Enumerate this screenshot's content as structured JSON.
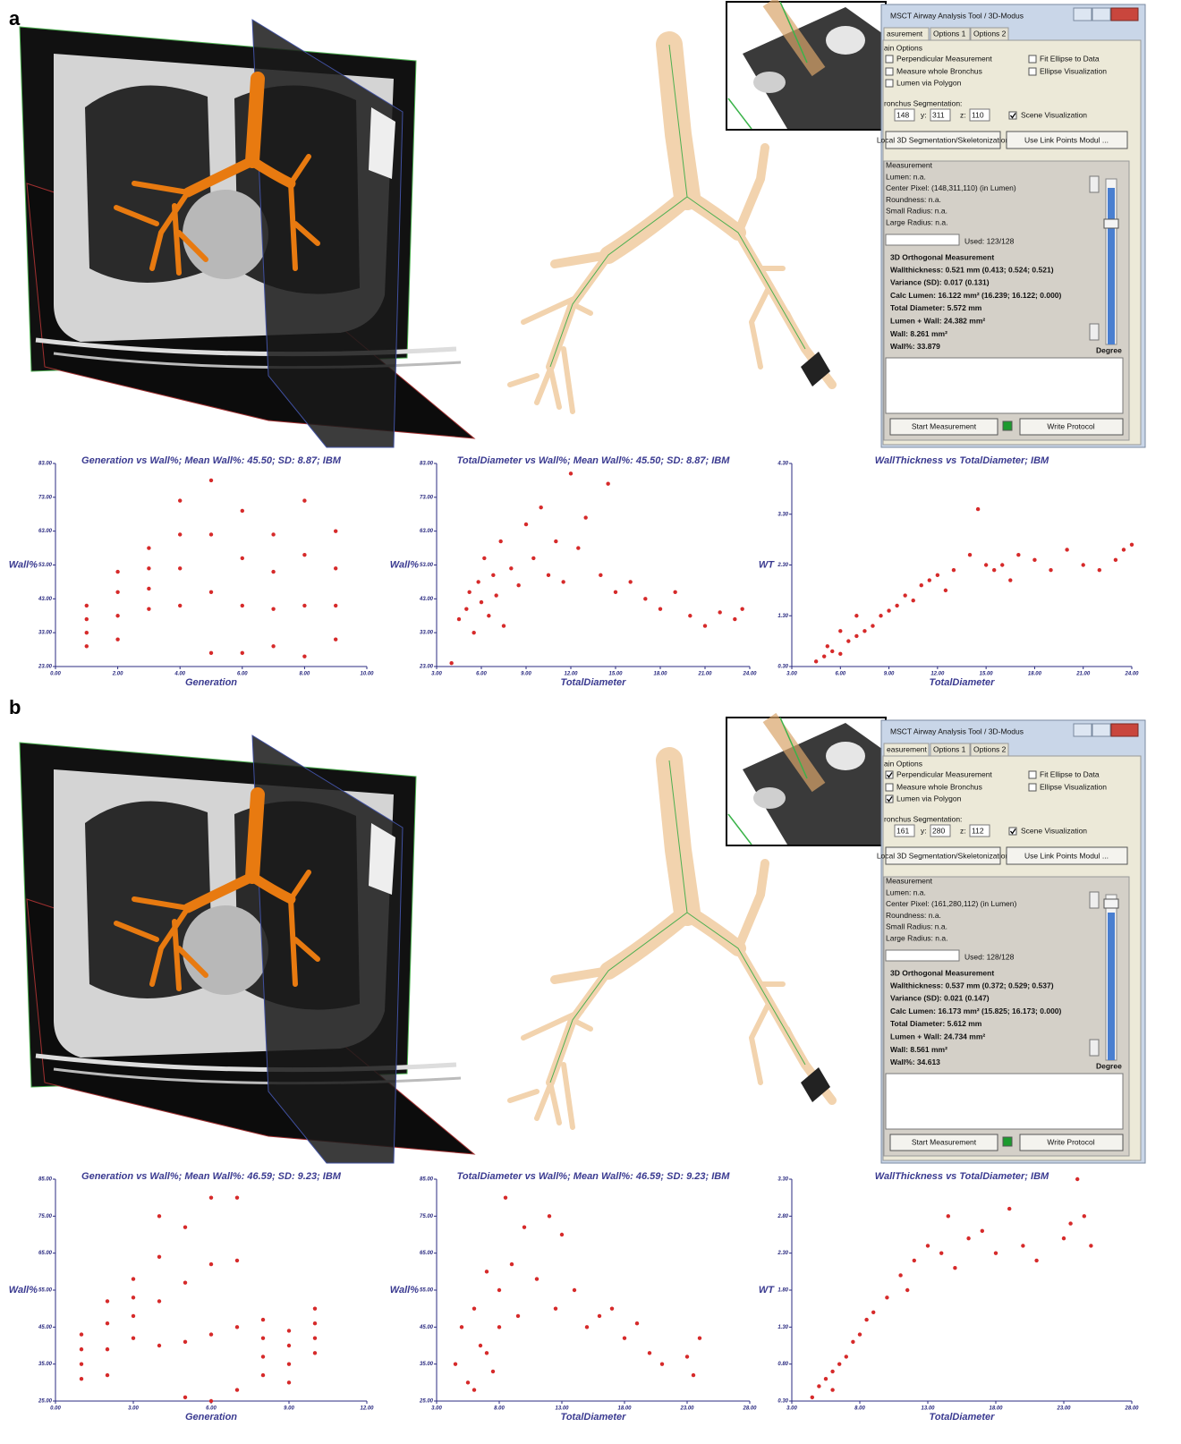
{
  "panels": [
    {
      "label": "a",
      "window": {
        "title": "MSCT Airway Analysis Tool / 3D-Modus",
        "tabs": [
          "asurement",
          "Options 1",
          "Options 2"
        ],
        "main_options_label": "ain Options",
        "options": [
          {
            "label": "Perpendicular Measurement",
            "checked": false
          },
          {
            "label": "Measure whole Bronchus",
            "checked": false
          },
          {
            "label": "Lumen via Polygon",
            "checked": false
          },
          {
            "label": "Fit Ellipse to Data",
            "checked": false
          },
          {
            "label": "Ellipse Visualization",
            "checked": false
          }
        ],
        "segmentation_label": "ronchus Segmentation:",
        "coords": {
          "x": 148,
          "y": 311,
          "z": 110
        },
        "coord_labels": [
          "y:",
          "z:"
        ],
        "scene_visualization": {
          "label": "Scene Visualization",
          "checked": true
        },
        "buttons": [
          "Local 3D Segmentation/Skeletonization",
          "Use Link Points Modul ..."
        ],
        "measurement_label": "Measurement",
        "info_lines": [
          "Lumen: n.a.",
          "Center Pixel: (148,311,110) (in Lumen)",
          "Roundness: n.a.",
          "Small Radius: n.a.",
          "Large Radius: n.a."
        ],
        "used": "Used: 123/128",
        "results_title": "3D Orthogonal Measurement",
        "results": [
          "Wallthickness: 0.521 mm (0.413; 0.524; 0.521)",
          "Variance (SD): 0.017 (0.131)",
          "Calc Lumen: 16.122 mm² (16.239; 16.122; 0.000)",
          "Total Diameter: 5.572 mm",
          "Lumen + Wall: 24.382 mm²",
          "Wall: 8.261 mm²",
          "Wall%: 33.879"
        ],
        "degree": "Degree",
        "bottom_buttons": [
          "Start Measurement",
          "Write Protocol"
        ]
      }
    },
    {
      "label": "b",
      "window": {
        "title": "MSCT Airway Analysis Tool / 3D-Modus",
        "tabs": [
          "easurement",
          "Options 1",
          "Options 2"
        ],
        "main_options_label": "ain Options",
        "options": [
          {
            "label": "Perpendicular Measurement",
            "checked": true
          },
          {
            "label": "Measure whole Bronchus",
            "checked": false
          },
          {
            "label": "Lumen via Polygon",
            "checked": true
          },
          {
            "label": "Fit Ellipse to Data",
            "checked": false
          },
          {
            "label": "Ellipse Visualization",
            "checked": false
          }
        ],
        "segmentation_label": "ronchus Segmentation:",
        "coords": {
          "x": 161,
          "y": 280,
          "z": 112
        },
        "coord_labels": [
          "y:",
          "z:"
        ],
        "scene_visualization": {
          "label": "Scene Visualization",
          "checked": true
        },
        "buttons": [
          "Local 3D Segmentation/Skeletonization",
          "Use Link Points Modul ..."
        ],
        "measurement_label": "Measurement",
        "info_lines": [
          "Lumen: n.a.",
          "Center Pixel: (161,280,112) (in Lumen)",
          "Roundness: n.a.",
          "Small Radius: n.a.",
          "Large Radius: n.a."
        ],
        "used": "Used: 128/128",
        "results_title": "3D Orthogonal Measurement",
        "results": [
          "Wallthickness: 0.537 mm (0.372; 0.529; 0.537)",
          "Variance (SD): 0.021 (0.147)",
          "Calc Lumen: 16.173 mm² (15.825; 16.173; 0.000)",
          "Total Diameter: 5.612 mm",
          "Lumen + Wall: 24.734 mm²",
          "Wall: 8.561 mm²",
          "Wall%: 34.613"
        ],
        "degree": "Degree",
        "bottom_buttons": [
          "Start Measurement",
          "Write Protocol"
        ]
      }
    }
  ],
  "chart_data": [
    {
      "type": "scatter",
      "title": "Generation vs Wall%; Mean Wall%: 45.50; SD: 8.87; IBM",
      "x_label": "Generation",
      "y_label": "Wall%",
      "color": "#d62a2a",
      "x": [
        1,
        1,
        1,
        1,
        2,
        2,
        2,
        2,
        3,
        3,
        3,
        3,
        4,
        4,
        4,
        4,
        5,
        5,
        5,
        5,
        6,
        6,
        6,
        6,
        7,
        7,
        7,
        7,
        8,
        8,
        8,
        8,
        9,
        9,
        9,
        9
      ],
      "y": [
        29,
        33,
        37,
        41,
        31,
        38,
        45,
        51,
        40,
        46,
        52,
        58,
        41,
        52,
        62,
        72,
        27,
        45,
        62,
        78,
        27,
        41,
        55,
        69,
        29,
        40,
        51,
        62,
        26,
        41,
        56,
        72,
        31,
        41,
        52,
        63
      ],
      "xlim": [
        0,
        10
      ],
      "ylim": [
        23,
        83
      ],
      "xticks": [
        {
          "value": 0,
          "label": "0.00"
        },
        {
          "value": 2,
          "label": "2.00"
        },
        {
          "value": 4,
          "label": "4.00"
        },
        {
          "value": 6,
          "label": "6.00"
        },
        {
          "value": 8,
          "label": "8.00"
        },
        {
          "value": 10,
          "label": "10.00"
        }
      ],
      "yticks": [
        {
          "value": 23,
          "label": "23.00"
        },
        {
          "value": 33,
          "label": "33.00"
        },
        {
          "value": 43,
          "label": "43.00"
        },
        {
          "value": 53,
          "label": "53.00"
        },
        {
          "value": 63,
          "label": "63.00"
        },
        {
          "value": 73,
          "label": "73.00"
        },
        {
          "value": 83,
          "label": "83.00"
        }
      ]
    },
    {
      "type": "scatter",
      "title": "TotalDiameter vs Wall%; Mean Wall%: 45.50; SD: 8.87; IBM",
      "x_label": "TotalDiameter",
      "y_label": "Wall%",
      "color": "#d62a2a",
      "x": [
        4.5,
        5,
        5.2,
        5.5,
        5.8,
        6,
        6.2,
        6.5,
        6.8,
        7,
        7.3,
        7.5,
        8,
        8.5,
        9,
        9.5,
        10,
        10.5,
        11,
        11.5,
        12,
        12.5,
        13,
        14,
        14.5,
        15,
        16,
        17,
        18,
        19,
        20,
        21,
        22,
        23,
        23.5,
        4
      ],
      "y": [
        37,
        40,
        45,
        33,
        48,
        42,
        55,
        38,
        50,
        44,
        60,
        35,
        52,
        47,
        65,
        55,
        70,
        50,
        60,
        48,
        80,
        58,
        67,
        50,
        77,
        45,
        48,
        43,
        40,
        45,
        38,
        35,
        39,
        37,
        40,
        24
      ],
      "xlim": [
        3,
        24
      ],
      "ylim": [
        23,
        83
      ],
      "xticks": [
        {
          "value": 3,
          "label": "3.00"
        },
        {
          "value": 6,
          "label": "6.00"
        },
        {
          "value": 9,
          "label": "9.00"
        },
        {
          "value": 12,
          "label": "12.00"
        },
        {
          "value": 15,
          "label": "15.00"
        },
        {
          "value": 18,
          "label": "18.00"
        },
        {
          "value": 21,
          "label": "21.00"
        },
        {
          "value": 24,
          "label": "24.00"
        }
      ],
      "yticks": [
        {
          "value": 23,
          "label": "23.00"
        },
        {
          "value": 33,
          "label": "33.00"
        },
        {
          "value": 43,
          "label": "43.00"
        },
        {
          "value": 53,
          "label": "53.00"
        },
        {
          "value": 63,
          "label": "63.00"
        },
        {
          "value": 73,
          "label": "73.00"
        },
        {
          "value": 83,
          "label": "83.00"
        }
      ]
    },
    {
      "type": "scatter",
      "title": "WallThickness vs TotalDiameter; IBM",
      "x_label": "TotalDiameter",
      "y_label": "WT",
      "color": "#d62a2a",
      "x": [
        4.5,
        5,
        5.5,
        6,
        6.5,
        7,
        7.5,
        8,
        8.5,
        9,
        9.5,
        10,
        10.5,
        11,
        11.5,
        12,
        12.5,
        13,
        14,
        14.5,
        15,
        15.5,
        16,
        16.5,
        17,
        18,
        19,
        20,
        21,
        22,
        23,
        23.5,
        24,
        5.2,
        6,
        7
      ],
      "y": [
        0.4,
        0.5,
        0.6,
        0.55,
        0.8,
        0.9,
        1.0,
        1.1,
        1.3,
        1.4,
        1.5,
        1.7,
        1.6,
        1.9,
        2.0,
        2.1,
        1.8,
        2.2,
        2.5,
        3.4,
        2.3,
        2.2,
        2.3,
        2.0,
        2.5,
        2.4,
        2.2,
        2.6,
        2.3,
        2.2,
        2.4,
        2.6,
        2.7,
        0.7,
        1.0,
        1.3
      ],
      "xlim": [
        3,
        24
      ],
      "ylim": [
        0.3,
        4.3
      ],
      "xticks": [
        {
          "value": 3,
          "label": "3.00"
        },
        {
          "value": 6,
          "label": "6.00"
        },
        {
          "value": 9,
          "label": "9.00"
        },
        {
          "value": 12,
          "label": "12.00"
        },
        {
          "value": 15,
          "label": "15.00"
        },
        {
          "value": 18,
          "label": "18.00"
        },
        {
          "value": 21,
          "label": "21.00"
        },
        {
          "value": 24,
          "label": "24.00"
        }
      ],
      "yticks": [
        {
          "value": 0.3,
          "label": "0.30"
        },
        {
          "value": 1.3,
          "label": "1.30"
        },
        {
          "value": 2.3,
          "label": "2.30"
        },
        {
          "value": 3.3,
          "label": "3.30"
        },
        {
          "value": 4.3,
          "label": "4.30"
        }
      ]
    },
    {
      "type": "scatter",
      "title": "Generation vs Wall%; Mean Wall%: 46.59; SD: 9.23; IBM",
      "x_label": "Generation",
      "y_label": "Wall%",
      "color": "#d62a2a",
      "x": [
        1,
        1,
        1,
        1,
        2,
        2,
        2,
        2,
        3,
        3,
        3,
        3,
        4,
        4,
        4,
        4,
        5,
        5,
        5,
        5,
        6,
        6,
        6,
        6,
        7,
        7,
        7,
        7,
        8,
        8,
        8,
        8,
        9,
        9,
        9,
        9,
        10,
        10,
        10,
        10
      ],
      "y": [
        31,
        35,
        39,
        43,
        32,
        39,
        46,
        52,
        42,
        48,
        53,
        58,
        40,
        52,
        64,
        75,
        26,
        41,
        57,
        72,
        25,
        43,
        62,
        80,
        28,
        45,
        63,
        80,
        32,
        37,
        42,
        47,
        30,
        35,
        40,
        44,
        38,
        42,
        46,
        50
      ],
      "xlim": [
        0,
        12
      ],
      "ylim": [
        25,
        85
      ],
      "xticks": [
        {
          "value": 0,
          "label": "0.00"
        },
        {
          "value": 3,
          "label": "3.00"
        },
        {
          "value": 6,
          "label": "6.00"
        },
        {
          "value": 9,
          "label": "9.00"
        },
        {
          "value": 12,
          "label": "12.00"
        }
      ],
      "yticks": [
        {
          "value": 25,
          "label": "25.00"
        },
        {
          "value": 35,
          "label": "35.00"
        },
        {
          "value": 45,
          "label": "45.00"
        },
        {
          "value": 55,
          "label": "55.00"
        },
        {
          "value": 65,
          "label": "65.00"
        },
        {
          "value": 75,
          "label": "75.00"
        },
        {
          "value": 85,
          "label": "85.00"
        }
      ]
    },
    {
      "type": "scatter",
      "title": "TotalDiameter vs Wall%; Mean Wall%: 46.59; SD: 9.23; IBM",
      "x_label": "TotalDiameter",
      "y_label": "Wall%",
      "color": "#d62a2a",
      "x": [
        4.5,
        5,
        5.5,
        6,
        6.5,
        7,
        7.5,
        8,
        8.5,
        9,
        9.5,
        10,
        11,
        12,
        12.5,
        13,
        14,
        15,
        16,
        17,
        18,
        19,
        20,
        21,
        23,
        24,
        23.5,
        6,
        7,
        8
      ],
      "y": [
        35,
        45,
        30,
        50,
        40,
        60,
        33,
        55,
        80,
        62,
        48,
        72,
        58,
        75,
        50,
        70,
        55,
        45,
        48,
        50,
        42,
        46,
        38,
        35,
        37,
        42,
        32,
        28,
        38,
        45
      ],
      "xlim": [
        3,
        28
      ],
      "ylim": [
        25,
        85
      ],
      "xticks": [
        {
          "value": 3,
          "label": "3.00"
        },
        {
          "value": 8,
          "label": "8.00"
        },
        {
          "value": 13,
          "label": "13.00"
        },
        {
          "value": 18,
          "label": "18.00"
        },
        {
          "value": 23,
          "label": "23.00"
        },
        {
          "value": 28,
          "label": "28.00"
        }
      ],
      "yticks": [
        {
          "value": 25,
          "label": "25.00"
        },
        {
          "value": 35,
          "label": "35.00"
        },
        {
          "value": 45,
          "label": "45.00"
        },
        {
          "value": 55,
          "label": "55.00"
        },
        {
          "value": 65,
          "label": "65.00"
        },
        {
          "value": 75,
          "label": "75.00"
        },
        {
          "value": 85,
          "label": "85.00"
        }
      ]
    },
    {
      "type": "scatter",
      "title": "WallThickness vs TotalDiameter; IBM",
      "x_label": "TotalDiameter",
      "y_label": "WT",
      "color": "#d62a2a",
      "x": [
        4.5,
        5,
        5.5,
        6,
        6.5,
        7,
        7.5,
        8,
        8.5,
        9,
        10,
        11,
        11.5,
        12,
        13,
        14,
        14.5,
        15,
        16,
        17,
        18,
        19,
        20,
        21,
        23,
        23.5,
        24,
        24.5,
        25,
        6
      ],
      "y": [
        0.35,
        0.5,
        0.6,
        0.45,
        0.8,
        0.9,
        1.1,
        1.2,
        1.4,
        1.5,
        1.7,
        2.0,
        1.8,
        2.2,
        2.4,
        2.3,
        2.8,
        2.1,
        2.5,
        2.6,
        2.3,
        2.9,
        2.4,
        2.2,
        2.5,
        2.7,
        3.3,
        2.8,
        2.4,
        0.7
      ],
      "xlim": [
        3,
        28
      ],
      "ylim": [
        0.3,
        3.3
      ],
      "xticks": [
        {
          "value": 3,
          "label": "3.00"
        },
        {
          "value": 8,
          "label": "8.00"
        },
        {
          "value": 13,
          "label": "13.00"
        },
        {
          "value": 18,
          "label": "18.00"
        },
        {
          "value": 23,
          "label": "23.00"
        },
        {
          "value": 28,
          "label": "28.00"
        }
      ],
      "yticks": [
        {
          "value": 0.3,
          "label": "0.30"
        },
        {
          "value": 0.8,
          "label": "0.80"
        },
        {
          "value": 1.3,
          "label": "1.30"
        },
        {
          "value": 1.8,
          "label": "1.80"
        },
        {
          "value": 2.3,
          "label": "2.30"
        },
        {
          "value": 2.8,
          "label": "2.80"
        },
        {
          "value": 3.3,
          "label": "3.30"
        }
      ]
    }
  ]
}
